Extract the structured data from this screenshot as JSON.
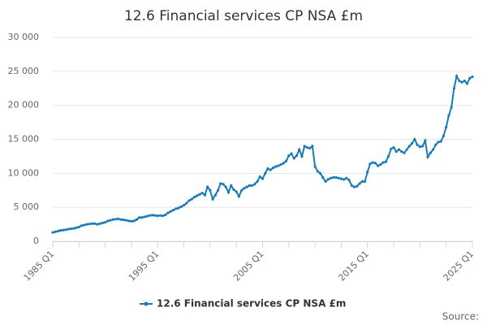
{
  "chart_data": {
    "type": "line",
    "title": "12.6 Financial services CP NSA £m",
    "categories": [
      "1985 Q1",
      null,
      null,
      null,
      null,
      null,
      null,
      null,
      null,
      null,
      null,
      null,
      null,
      null,
      null,
      null,
      null,
      null,
      null,
      null,
      null,
      null,
      null,
      null,
      null,
      null,
      null,
      null,
      null,
      null,
      null,
      null,
      null,
      null,
      null,
      null,
      null,
      null,
      null,
      null,
      "1995 Q1",
      null,
      null,
      null,
      null,
      null,
      null,
      null,
      null,
      null,
      null,
      null,
      null,
      null,
      null,
      null,
      null,
      null,
      null,
      null,
      null,
      null,
      null,
      null,
      null,
      null,
      null,
      null,
      null,
      null,
      null,
      null,
      null,
      null,
      null,
      null,
      null,
      null,
      null,
      null,
      "2005 Q1",
      null,
      null,
      null,
      null,
      null,
      null,
      null,
      null,
      null,
      null,
      null,
      null,
      null,
      null,
      null,
      null,
      null,
      null,
      null,
      null,
      null,
      null,
      null,
      null,
      null,
      null,
      null,
      null,
      null,
      null,
      null,
      null,
      null,
      null,
      null,
      null,
      null,
      null,
      null,
      "2015 Q1",
      null,
      null,
      null,
      null,
      null,
      null,
      null,
      null,
      null,
      null,
      null,
      null,
      null,
      null,
      null,
      null,
      null,
      null,
      null,
      null,
      null,
      null,
      null,
      null,
      null,
      null,
      null,
      null,
      null,
      null,
      null,
      null,
      null,
      null,
      null,
      null,
      null,
      null,
      null,
      "2025 Q1"
    ],
    "series": [
      {
        "name": "12.6 Financial services CP NSA £m",
        "color": "#1a7ab5",
        "values": [
          1300,
          1400,
          1500,
          1600,
          1650,
          1700,
          1800,
          1850,
          1900,
          2000,
          2100,
          2300,
          2400,
          2500,
          2550,
          2600,
          2600,
          2500,
          2600,
          2700,
          2800,
          3000,
          3100,
          3200,
          3250,
          3300,
          3200,
          3150,
          3100,
          3000,
          2950,
          3000,
          3200,
          3500,
          3500,
          3600,
          3700,
          3800,
          3850,
          3800,
          3750,
          3800,
          3750,
          3900,
          4200,
          4400,
          4600,
          4800,
          4900,
          5100,
          5300,
          5600,
          6000,
          6200,
          6500,
          6700,
          6900,
          7100,
          6800,
          8000,
          7500,
          6200,
          6800,
          7500,
          8500,
          8400,
          8000,
          7200,
          8200,
          7600,
          7300,
          6600,
          7500,
          7800,
          8000,
          8200,
          8200,
          8400,
          8800,
          9500,
          9200,
          10000,
          10700,
          10500,
          10800,
          11000,
          11100,
          11300,
          11500,
          11800,
          12600,
          12900,
          12200,
          12600,
          13500,
          12500,
          14000,
          13800,
          13700,
          14000,
          11000,
          10300,
          10000,
          9400,
          8800,
          9100,
          9300,
          9400,
          9400,
          9300,
          9200,
          9100,
          9300,
          9000,
          8200,
          8000,
          8100,
          8500,
          8800,
          8800,
          10200,
          11400,
          11600,
          11500,
          11100,
          11300,
          11600,
          11700,
          12500,
          13600,
          13800,
          13200,
          13500,
          13200,
          13000,
          13500,
          14000,
          14400,
          15000,
          14200,
          13900,
          14000,
          14800,
          12400,
          13000,
          13500,
          14200,
          14600,
          14700,
          15500,
          16800,
          18500,
          19700,
          22500,
          24300,
          23600,
          23400,
          23600,
          23200,
          24000,
          24200
        ]
      }
    ],
    "ylim": [
      0,
      30000
    ],
    "yticks": [
      0,
      {
        "value": 5000,
        "label": "5 000"
      },
      {
        "value": 10000,
        "label": "10 000"
      },
      {
        "value": 15000,
        "label": "15 000"
      },
      {
        "value": 20000,
        "label": "20 000"
      },
      {
        "value": 25000,
        "label": "25 000"
      },
      {
        "value": 30000,
        "label": "30 000"
      }
    ],
    "grid": true,
    "legend": "bottom",
    "source": "Source:"
  }
}
